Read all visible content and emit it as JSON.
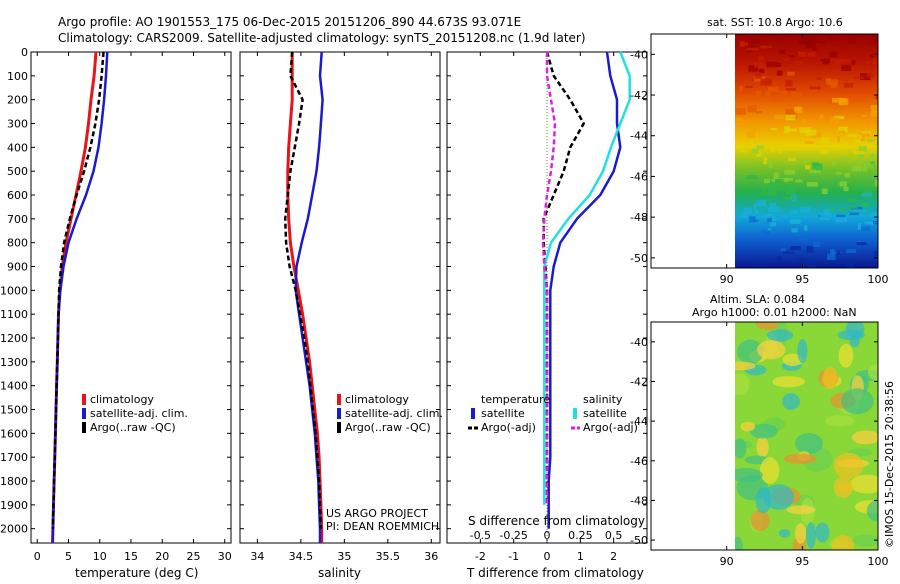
{
  "header": {
    "line1": "Argo profile: AO 1901553_175 06-Dec-2015 20151206_890 44.673S 93.071E",
    "line2": "Climatology: CARS2009. Satellite-adjusted climatology: synTS_20151208.nc (1.9d later)"
  },
  "credits": {
    "project": "US ARGO PROJECT",
    "pi": "PI: DEAN ROEMMICH",
    "stamp": "©IMOS 15-Dec-2015 20:38:56"
  },
  "colors": {
    "climatology": "#e8141a",
    "satellite": "#1a1ad0",
    "argo": "#000000",
    "sal_satellite": "#22e0e0",
    "sal_argo": "#e020e0"
  },
  "maps": {
    "sst_title": "sat. SST: 10.8 Argo: 10.6",
    "sla_title1": "Altim. SLA: 0.084",
    "sla_title2": "Argo h1000: 0.01 h2000: NaN",
    "lat_ticks": [
      "-40",
      "-42",
      "-44",
      "-46",
      "-48",
      "-50"
    ],
    "lon_ticks": [
      "90",
      "95",
      "100"
    ]
  },
  "legend_left": {
    "climatology": "climatology",
    "satellite": "satellite-adj. clim.",
    "argo": "Argo(..raw -QC)"
  },
  "legend_diff": {
    "temperature": "temperature",
    "salinity": "salinity",
    "satellite": "satellite",
    "argo": "Argo(-adj)"
  },
  "chart_data": [
    {
      "type": "line",
      "xlabel": "temperature (deg C)",
      "xlim": [
        -1,
        31
      ],
      "ylim": [
        0,
        2060
      ],
      "xticks": [
        "0",
        "5",
        "10",
        "15",
        "20",
        "25",
        "30"
      ],
      "yticks": [
        "0",
        "100",
        "200",
        "300",
        "400",
        "500",
        "600",
        "700",
        "800",
        "900",
        "1000",
        "1100",
        "1200",
        "1300",
        "1400",
        "1500",
        "1600",
        "1700",
        "1800",
        "1900",
        "2000"
      ],
      "series": [
        {
          "name": "climatology",
          "x": [
            9.4,
            9.1,
            8.6,
            8.2,
            7.7,
            7.0,
            6.2,
            5.4,
            4.6,
            4.0,
            3.6,
            3.4,
            3.3,
            3.2,
            3.1,
            3.0,
            2.9,
            2.8,
            2.7,
            2.6,
            2.5,
            2.45
          ],
          "y": [
            0,
            100,
            200,
            300,
            400,
            500,
            600,
            700,
            800,
            900,
            1000,
            1100,
            1200,
            1300,
            1400,
            1500,
            1600,
            1700,
            1800,
            1900,
            2000,
            2060
          ]
        },
        {
          "name": "satellite-adj. clim.",
          "x": [
            11.2,
            11.0,
            10.7,
            10.3,
            9.8,
            9.0,
            7.8,
            6.3,
            5.0,
            4.2,
            3.7,
            3.4,
            3.3,
            3.2,
            3.1,
            3.0,
            2.9,
            2.8,
            2.7,
            2.6,
            2.5,
            2.45
          ],
          "y": [
            0,
            100,
            200,
            300,
            400,
            500,
            600,
            700,
            800,
            900,
            1000,
            1100,
            1200,
            1300,
            1400,
            1500,
            1600,
            1700,
            1800,
            1900,
            2000,
            2060
          ]
        },
        {
          "name": "Argo(..raw -QC)",
          "x": [
            10.6,
            10.3,
            9.9,
            9.3,
            8.5,
            7.5,
            6.3,
            5.2,
            4.3,
            3.8,
            3.5,
            3.4,
            3.3,
            3.2,
            3.1,
            3.0,
            2.9,
            2.8,
            2.7,
            2.6,
            2.5
          ],
          "y": [
            0,
            100,
            200,
            300,
            400,
            500,
            600,
            700,
            800,
            900,
            1000,
            1100,
            1200,
            1300,
            1400,
            1500,
            1600,
            1700,
            1800,
            1900,
            2000
          ]
        }
      ]
    },
    {
      "type": "line",
      "xlabel": "salinity",
      "xlim": [
        33.8,
        36.1
      ],
      "ylim": [
        0,
        2060
      ],
      "xticks": [
        "34",
        "34.5",
        "35",
        "35.5",
        "36"
      ],
      "series": [
        {
          "name": "climatology",
          "x": [
            34.4,
            34.4,
            34.4,
            34.38,
            34.36,
            34.35,
            34.35,
            34.36,
            34.38,
            34.42,
            34.47,
            34.52,
            34.56,
            34.6,
            34.63,
            34.66,
            34.69,
            34.71,
            34.72,
            34.73,
            34.74,
            34.74
          ],
          "y": [
            0,
            100,
            200,
            300,
            400,
            500,
            600,
            700,
            800,
            900,
            1000,
            1100,
            1200,
            1300,
            1400,
            1500,
            1600,
            1700,
            1800,
            1900,
            2000,
            2060
          ]
        },
        {
          "name": "satellite-adj. clim.",
          "x": [
            34.74,
            34.72,
            34.75,
            34.73,
            34.71,
            34.68,
            34.63,
            34.58,
            34.51,
            34.45,
            34.44,
            34.48,
            34.52,
            34.56,
            34.6,
            34.63,
            34.66,
            34.68,
            34.7,
            34.71,
            34.72,
            34.72
          ],
          "y": [
            0,
            100,
            200,
            300,
            400,
            500,
            600,
            700,
            800,
            900,
            1000,
            1100,
            1200,
            1300,
            1400,
            1500,
            1600,
            1700,
            1800,
            1900,
            2000,
            2060
          ]
        },
        {
          "name": "Argo(..raw -QC)",
          "x": [
            34.4,
            34.38,
            34.52,
            34.48,
            34.43,
            34.38,
            34.35,
            34.32,
            34.33,
            34.37,
            34.44,
            34.49,
            34.54,
            34.58,
            34.61,
            34.64,
            34.67,
            34.69,
            34.71,
            34.72,
            34.73
          ],
          "y": [
            0,
            100,
            200,
            300,
            400,
            500,
            600,
            700,
            800,
            900,
            1000,
            1100,
            1200,
            1300,
            1400,
            1500,
            1600,
            1700,
            1800,
            1900,
            2000
          ]
        }
      ]
    },
    {
      "type": "line",
      "xlabel": "T difference from climatology",
      "xlabel2": "S difference from climatology",
      "xlim": [
        -3,
        3
      ],
      "ylim": [
        0,
        2060
      ],
      "xticks": [
        "-2",
        "-1",
        "0",
        "1",
        "2"
      ],
      "xticks2": [
        "-0.5",
        "-0.25",
        "0",
        "0.25",
        "0.5"
      ],
      "series": [
        {
          "name": "temperature satellite",
          "x": [
            1.8,
            1.9,
            2.1,
            2.1,
            2.2,
            2.0,
            1.6,
            0.9,
            0.4,
            0.2,
            0.1,
            0.1,
            0.1,
            0.1,
            0.1,
            0.1,
            0.1,
            0.1,
            0.05,
            0.05,
            0.05
          ],
          "y": [
            0,
            100,
            200,
            300,
            400,
            500,
            600,
            700,
            800,
            900,
            1000,
            1100,
            1200,
            1300,
            1400,
            1500,
            1600,
            1700,
            1800,
            1900,
            2000
          ]
        },
        {
          "name": "temperature Argo(-adj)",
          "x": [
            0.0,
            0.2,
            0.7,
            1.1,
            0.7,
            0.5,
            0.2,
            -0.1,
            -0.1,
            -0.05,
            0.0,
            0.0,
            0.0,
            0.0,
            0.0,
            0.0,
            0.0,
            0.0,
            0.0,
            0.0
          ],
          "y": [
            0,
            100,
            200,
            300,
            400,
            500,
            600,
            700,
            800,
            900,
            1000,
            1100,
            1200,
            1300,
            1400,
            1500,
            1600,
            1700,
            1800,
            1900
          ]
        },
        {
          "name": "salinity satellite",
          "x": [
            0.55,
            0.62,
            0.62,
            0.55,
            0.48,
            0.42,
            0.32,
            0.16,
            0.03,
            -0.02,
            -0.02,
            -0.02,
            -0.02,
            -0.02,
            -0.02,
            -0.02,
            -0.02,
            -0.02,
            -0.02,
            -0.02
          ],
          "y": [
            0,
            100,
            200,
            300,
            400,
            500,
            600,
            700,
            800,
            900,
            1000,
            1100,
            1200,
            1300,
            1400,
            1500,
            1600,
            1700,
            1800,
            1900
          ]
        },
        {
          "name": "salinity Argo(-adj)",
          "x": [
            0.0,
            0.0,
            0.03,
            0.06,
            0.05,
            0.03,
            0.0,
            -0.02,
            -0.03,
            -0.02,
            0.0,
            0.0,
            0.0,
            0.0,
            0.0,
            0.0,
            0.0,
            0.0,
            0.0,
            0.0
          ],
          "y": [
            0,
            100,
            200,
            300,
            400,
            500,
            600,
            700,
            800,
            900,
            1000,
            1100,
            1200,
            1300,
            1400,
            1500,
            1600,
            1700,
            1800,
            1900
          ]
        }
      ]
    },
    {
      "type": "heatmap",
      "title": "sat. SST: 10.8 Argo: 10.6",
      "xlim": [
        85,
        100
      ],
      "ylim": [
        -50.5,
        -39
      ]
    },
    {
      "type": "heatmap",
      "title": "Altim. SLA: 0.084",
      "xlim": [
        85,
        100
      ],
      "ylim": [
        -50.5,
        -39
      ]
    }
  ]
}
